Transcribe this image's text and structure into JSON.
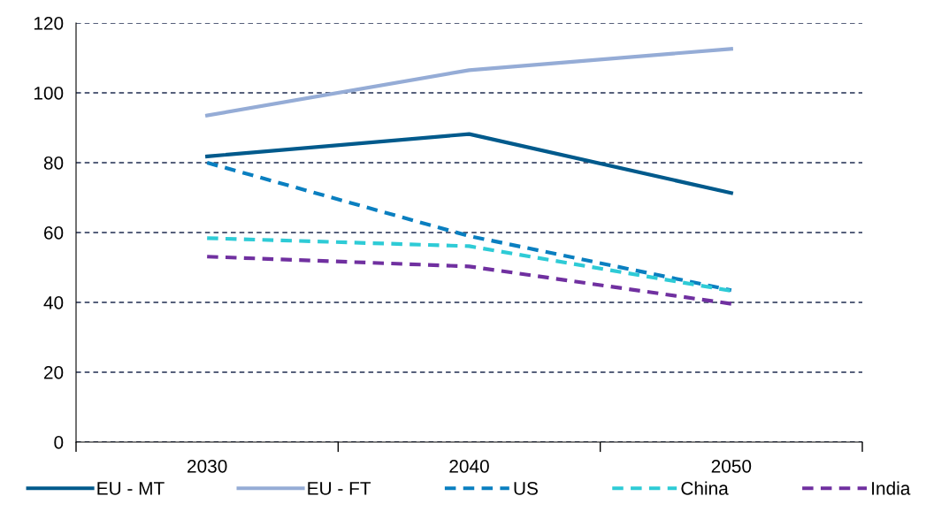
{
  "chart_data": {
    "type": "line",
    "categories": [
      "2030",
      "2040",
      "2050"
    ],
    "series": [
      {
        "name": "EU - MT",
        "color": "#005a8c",
        "line_style": "solid",
        "values": [
          81.8,
          88.2,
          71.3
        ]
      },
      {
        "name": "EU - FT",
        "color": "#95acd6",
        "line_style": "solid",
        "values": [
          93.5,
          106.5,
          112.6
        ]
      },
      {
        "name": "US",
        "color": "#0a7fc0",
        "line_style": "dashed",
        "values": [
          80,
          59,
          43.5
        ]
      },
      {
        "name": "China",
        "color": "#2ecbd6",
        "line_style": "dashed",
        "values": [
          58.4,
          56.1,
          43.3
        ]
      },
      {
        "name": "India",
        "color": "#7030a0",
        "line_style": "dashed",
        "values": [
          53.1,
          50.3,
          39.6
        ]
      }
    ],
    "ylim": [
      0,
      120
    ],
    "yticks": [
      0,
      20,
      40,
      60,
      80,
      100,
      120
    ],
    "grid": "y",
    "legend": "bottom",
    "marker": "none"
  }
}
